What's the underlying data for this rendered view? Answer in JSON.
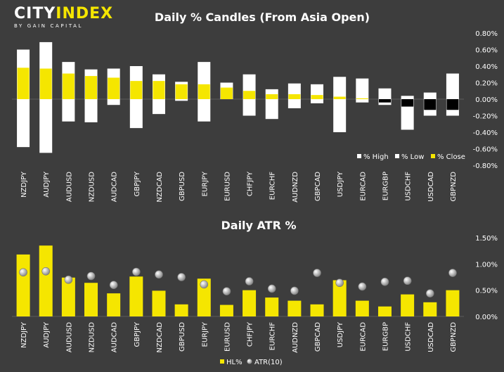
{
  "brand": {
    "name_part1": "CITY",
    "name_part2": "INDEX",
    "tagline": "BY GAIN CAPITAL",
    "accent_color": "#f5e600"
  },
  "chart_data": [
    {
      "type": "bar",
      "subtype": "floating-range-candles",
      "title": "Daily % Candles (From Asia Open)",
      "categories": [
        "NZDJPY",
        "AUDJPY",
        "AUDUSD",
        "NZDUSD",
        "AUDCAD",
        "GBPJPY",
        "NZDCAD",
        "GBPUSD",
        "EURJPY",
        "EURUSD",
        "CHFJPY",
        "EURCHF",
        "AUDNZD",
        "GBPCAD",
        "USDJPY",
        "EURCAD",
        "EURGBP",
        "USDCHF",
        "USDCAD",
        "GBPNZD"
      ],
      "series": [
        {
          "name": "% High",
          "color": "#ffffff",
          "values": [
            0.6,
            0.69,
            0.45,
            0.36,
            0.37,
            0.4,
            0.3,
            0.21,
            0.45,
            0.2,
            0.3,
            0.12,
            0.19,
            0.18,
            0.27,
            0.25,
            0.13,
            0.04,
            0.08,
            0.31
          ]
        },
        {
          "name": "% Low",
          "color": "#ffffff",
          "values": [
            -0.58,
            -0.65,
            -0.27,
            -0.28,
            -0.07,
            -0.35,
            -0.18,
            -0.02,
            -0.27,
            0.0,
            -0.2,
            -0.24,
            -0.11,
            -0.05,
            -0.4,
            -0.04,
            -0.07,
            -0.37,
            -0.2,
            -0.2
          ]
        },
        {
          "name": "% Close",
          "color": "#f5e600",
          "values": [
            0.38,
            0.37,
            0.31,
            0.28,
            0.26,
            0.22,
            0.22,
            0.18,
            0.18,
            0.14,
            0.1,
            0.06,
            0.06,
            0.05,
            0.03,
            0.01,
            -0.04,
            -0.09,
            -0.13,
            -0.13
          ]
        }
      ],
      "ylim": [
        -0.8,
        0.8
      ],
      "yticks": [
        "0.80%",
        "0.60%",
        "0.40%",
        "0.20%",
        "0.00%",
        "-0.20%",
        "-0.40%",
        "-0.60%",
        "-0.80%"
      ],
      "negative_close_color": "#000000",
      "legend_position": "bottom-right",
      "grid": false
    },
    {
      "type": "bar",
      "title": "Daily ATR %",
      "categories": [
        "NZDJPY",
        "AUDJPY",
        "AUDUSD",
        "NZDUSD",
        "AUDCAD",
        "GBPJPY",
        "NZDCAD",
        "GBPUSD",
        "EURJPY",
        "EURUSD",
        "CHFJPY",
        "EURCHF",
        "AUDNZD",
        "GBPCAD",
        "USDJPY",
        "EURCAD",
        "EURGBP",
        "USDCHF",
        "USDCAD",
        "GBPNZD"
      ],
      "series": [
        {
          "name": "HL%",
          "type": "bar",
          "color": "#f5e600",
          "values": [
            1.18,
            1.35,
            0.74,
            0.64,
            0.44,
            0.76,
            0.49,
            0.23,
            0.72,
            0.22,
            0.5,
            0.36,
            0.3,
            0.23,
            0.69,
            0.3,
            0.19,
            0.42,
            0.27,
            0.5
          ]
        },
        {
          "name": "ATR(10)",
          "type": "scatter",
          "color": "#dddddd",
          "values": [
            0.84,
            0.86,
            0.7,
            0.77,
            0.6,
            0.85,
            0.8,
            0.75,
            0.61,
            0.48,
            0.67,
            0.53,
            0.49,
            0.83,
            0.64,
            0.57,
            0.66,
            0.68,
            0.44,
            0.83
          ]
        }
      ],
      "ylim": [
        0.0,
        1.5
      ],
      "yticks": [
        "1.50%",
        "1.00%",
        "0.50%",
        "0.00%"
      ],
      "legend_position": "bottom-center",
      "grid": false
    }
  ]
}
